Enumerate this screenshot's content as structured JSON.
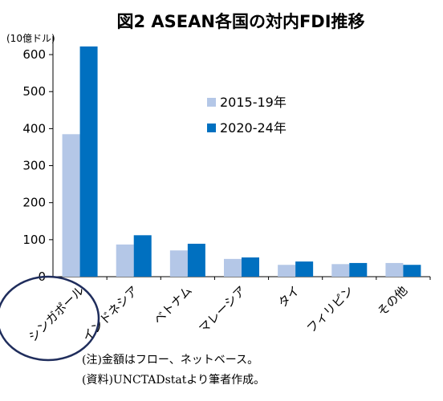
{
  "chart_data": {
    "type": "bar",
    "title": "図2 ASEAN各国の対内FDI推移",
    "ylabel": "(10億ドル)",
    "xlabel": "",
    "ylim": [
      0,
      650
    ],
    "yticks": [
      0,
      100,
      200,
      300,
      400,
      500,
      600
    ],
    "grid": false,
    "legend": "upper-right",
    "categories": [
      "シンガポール",
      "インドネシア",
      "ベトナム",
      "マレーシア",
      "タイ",
      "フィリピン",
      "その他"
    ],
    "series": [
      {
        "name": "2015-19年",
        "color": "#b4c7e7",
        "values": [
          385,
          87,
          71,
          48,
          32,
          34,
          37
        ]
      },
      {
        "name": "2020-24年",
        "color": "#0070c0",
        "values": [
          622,
          112,
          89,
          52,
          41,
          37,
          32
        ]
      }
    ],
    "highlight_category": "シンガポール",
    "highlight_color": "#1f2d5c"
  },
  "notes": [
    "(注)金額はフロー、ネットベース。",
    "(資料)UNCTADstatより筆者作成。"
  ]
}
